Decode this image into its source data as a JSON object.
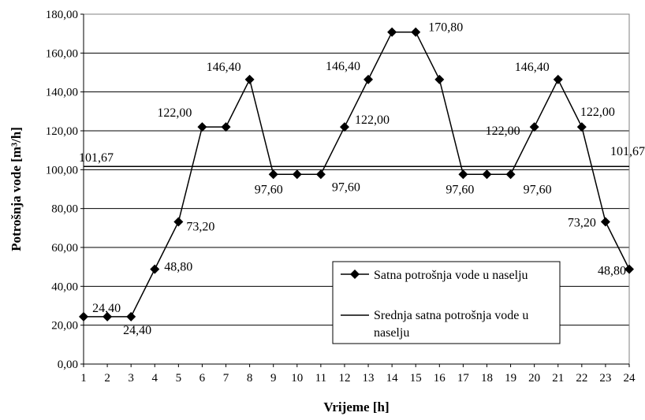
{
  "chart_data": {
    "type": "line",
    "xlabel": "Vrijeme [h]",
    "ylabel": "Potrošnja vode [m³/h]",
    "ylim": [
      0,
      180
    ],
    "yticks": [
      "0,00",
      "20,00",
      "40,00",
      "60,00",
      "80,00",
      "100,00",
      "120,00",
      "140,00",
      "160,00",
      "180,00"
    ],
    "categories": [
      "1",
      "2",
      "3",
      "4",
      "5",
      "6",
      "7",
      "8",
      "9",
      "10",
      "11",
      "12",
      "13",
      "14",
      "15",
      "16",
      "17",
      "18",
      "19",
      "20",
      "21",
      "22",
      "23",
      "24"
    ],
    "grid": true,
    "legend_position": "bottom-right",
    "series": [
      {
        "name": "Satna potrošnja vode u naselju",
        "marker": "diamond",
        "color": "#000000",
        "values": [
          24.4,
          24.4,
          24.4,
          48.8,
          73.2,
          122.0,
          122.0,
          146.4,
          97.6,
          97.6,
          97.6,
          122.0,
          146.4,
          170.8,
          170.8,
          146.4,
          97.6,
          97.6,
          97.6,
          122.0,
          146.4,
          122.0,
          73.2,
          48.8
        ]
      },
      {
        "name": "Srednja satna potrošnja vode u naselju",
        "marker": "none",
        "color": "#000000",
        "values": [
          101.67,
          101.67,
          101.67,
          101.67,
          101.67,
          101.67,
          101.67,
          101.67,
          101.67,
          101.67,
          101.67,
          101.67,
          101.67,
          101.67,
          101.67,
          101.67,
          101.67,
          101.67,
          101.67,
          101.67,
          101.67,
          101.67,
          101.67,
          101.67
        ]
      }
    ],
    "data_labels": [
      {
        "text": "24,40",
        "hour": 2,
        "value": 24.4
      },
      {
        "text": "24,40",
        "hour": 3,
        "value": 24.4
      },
      {
        "text": "48,80",
        "hour": 4,
        "value": 48.8
      },
      {
        "text": "73,20",
        "hour": 5,
        "value": 73.2
      },
      {
        "text": "122,00",
        "hour": 6,
        "value": 122.0
      },
      {
        "text": "146,40",
        "hour": 8,
        "value": 146.4
      },
      {
        "text": "97,60",
        "hour": 9,
        "value": 97.6
      },
      {
        "text": "97,60",
        "hour": 11,
        "value": 97.6
      },
      {
        "text": "122,00",
        "hour": 12,
        "value": 122.0
      },
      {
        "text": "146,40",
        "hour": 13,
        "value": 146.4
      },
      {
        "text": "170,80",
        "hour": 15,
        "value": 170.8
      },
      {
        "text": "97,60",
        "hour": 17,
        "value": 97.6
      },
      {
        "text": "97,60",
        "hour": 19,
        "value": 97.6
      },
      {
        "text": "122,00",
        "hour": 20,
        "value": 122.0
      },
      {
        "text": "146,40",
        "hour": 21,
        "value": 146.4
      },
      {
        "text": "122,00",
        "hour": 22,
        "value": 122.0
      },
      {
        "text": "73,20",
        "hour": 23,
        "value": 73.2
      },
      {
        "text": "48,80",
        "hour": 24,
        "value": 48.8
      },
      {
        "text": "101,67",
        "hour": 1,
        "value": 101.67,
        "series": 1
      },
      {
        "text": "101,67",
        "hour": 24,
        "value": 101.67,
        "series": 1
      }
    ]
  }
}
